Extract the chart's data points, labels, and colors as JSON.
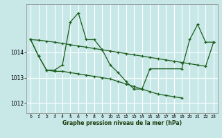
{
  "bg_color": "#c8e8e8",
  "grid_color": "#b0d8d8",
  "line_color": "#1a5c1a",
  "xlabel": "Graphe pression niveau de la mer (hPa)",
  "ylim": [
    1011.6,
    1015.9
  ],
  "xlim": [
    -0.5,
    23.5
  ],
  "yticks": [
    1012,
    1013,
    1014
  ],
  "xticks": [
    0,
    1,
    2,
    3,
    4,
    5,
    6,
    7,
    8,
    9,
    10,
    11,
    12,
    13,
    14,
    15,
    16,
    17,
    18,
    19,
    20,
    21,
    22,
    23
  ],
  "series": [
    {
      "x": [
        0,
        1,
        2,
        3,
        4,
        5,
        6,
        7,
        8,
        9,
        10,
        11,
        12,
        13,
        14,
        15,
        19,
        20,
        21,
        22,
        23
      ],
      "y": [
        1014.5,
        1013.85,
        1013.3,
        1013.3,
        1013.5,
        1015.2,
        1015.55,
        1014.5,
        1014.5,
        1014.1,
        1013.5,
        1013.2,
        1012.85,
        1012.55,
        1012.55,
        1013.35,
        1013.35,
        1014.5,
        1015.1,
        1014.4,
        1014.4
      ]
    },
    {
      "x": [
        0,
        1,
        2,
        3,
        4,
        5,
        6,
        7,
        8,
        9,
        10,
        11,
        12,
        13,
        14,
        15,
        16,
        17,
        18,
        19
      ],
      "y": [
        1014.5,
        1013.85,
        1013.3,
        1013.25,
        1013.25,
        1013.2,
        1013.15,
        1013.1,
        1013.05,
        1013.0,
        1012.95,
        1012.85,
        1012.75,
        1012.65,
        1012.55,
        1012.45,
        1012.35,
        1012.3,
        1012.25,
        1012.2
      ]
    },
    {
      "x": [
        0,
        1,
        2,
        3,
        4,
        5,
        6,
        7,
        8,
        9,
        10,
        11,
        12,
        13,
        14,
        15,
        16,
        17,
        18,
        19,
        20,
        21,
        22,
        23
      ],
      "y": [
        1014.5,
        1014.48,
        1014.44,
        1014.4,
        1014.35,
        1014.3,
        1014.25,
        1014.2,
        1014.15,
        1014.1,
        1014.05,
        1014.0,
        1013.95,
        1013.9,
        1013.85,
        1013.8,
        1013.75,
        1013.7,
        1013.65,
        1013.6,
        1013.55,
        1013.5,
        1013.45,
        1014.4
      ]
    }
  ]
}
